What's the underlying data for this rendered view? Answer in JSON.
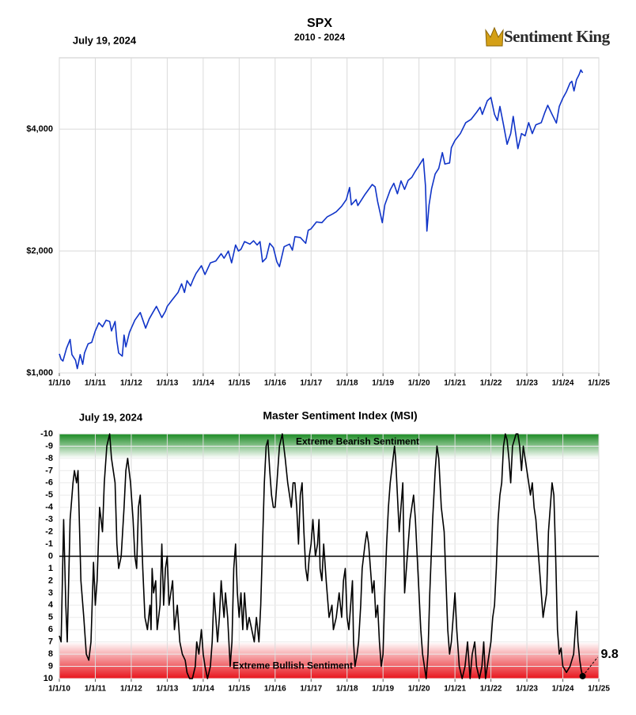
{
  "chart_data": [
    {
      "type": "line",
      "title": "SPX",
      "subtitle": "2010 - 2024",
      "date": "July 19, 2024",
      "logo": "Sentiment King",
      "log_y": true,
      "grid": true,
      "color": "#1034c8",
      "xlim": [
        2010,
        2025
      ],
      "xticks": [
        {
          "value": 2010,
          "label": "1/1/10"
        },
        {
          "value": 2011,
          "label": "1/1/11"
        },
        {
          "value": 2012,
          "label": "1/1/12"
        },
        {
          "value": 2013,
          "label": "1/1/13"
        },
        {
          "value": 2014,
          "label": "1/1/14"
        },
        {
          "value": 2015,
          "label": "1/1/15"
        },
        {
          "value": 2016,
          "label": "1/1/16"
        },
        {
          "value": 2017,
          "label": "1/1/17"
        },
        {
          "value": 2018,
          "label": "1/1/18"
        },
        {
          "value": 2019,
          "label": "1/1/19"
        },
        {
          "value": 2020,
          "label": "1/1/20"
        },
        {
          "value": 2021,
          "label": "1/1/21"
        },
        {
          "value": 2022,
          "label": "1/1/22"
        },
        {
          "value": 2023,
          "label": "1/1/23"
        },
        {
          "value": 2024,
          "label": "1/1/24"
        },
        {
          "value": 2025,
          "label": "1/1/25"
        }
      ],
      "ylim": [
        1000,
        6000
      ],
      "yticks": [
        {
          "value": 1000,
          "label": "$1,000"
        },
        {
          "value": 2000,
          "label": "$2,000"
        },
        {
          "value": 4000,
          "label": "$4,000"
        }
      ],
      "x": [
        2010.0,
        2010.05,
        2010.1,
        2010.2,
        2010.3,
        2010.35,
        2010.45,
        2010.5,
        2010.58,
        2010.65,
        2010.7,
        2010.8,
        2010.9,
        2011.0,
        2011.1,
        2011.2,
        2011.3,
        2011.4,
        2011.45,
        2011.55,
        2011.6,
        2011.65,
        2011.75,
        2011.8,
        2011.85,
        2011.95,
        2012.1,
        2012.25,
        2012.4,
        2012.5,
        2012.6,
        2012.7,
        2012.85,
        2012.95,
        2013.0,
        2013.15,
        2013.3,
        2013.4,
        2013.48,
        2013.55,
        2013.65,
        2013.72,
        2013.8,
        2013.95,
        2014.05,
        2014.2,
        2014.35,
        2014.5,
        2014.58,
        2014.7,
        2014.79,
        2014.9,
        2014.98,
        2015.05,
        2015.15,
        2015.3,
        2015.4,
        2015.5,
        2015.58,
        2015.65,
        2015.75,
        2015.85,
        2015.95,
        2016.05,
        2016.12,
        2016.25,
        2016.4,
        2016.48,
        2016.55,
        2016.7,
        2016.85,
        2016.92,
        2017.0,
        2017.15,
        2017.3,
        2017.45,
        2017.6,
        2017.7,
        2017.85,
        2017.98,
        2018.07,
        2018.12,
        2018.25,
        2018.3,
        2018.5,
        2018.7,
        2018.78,
        2018.85,
        2018.98,
        2019.05,
        2019.2,
        2019.3,
        2019.4,
        2019.5,
        2019.6,
        2019.7,
        2019.8,
        2019.9,
        2020.0,
        2020.12,
        2020.18,
        2020.22,
        2020.28,
        2020.35,
        2020.45,
        2020.55,
        2020.65,
        2020.72,
        2020.85,
        2020.9,
        2021.0,
        2021.15,
        2021.3,
        2021.45,
        2021.6,
        2021.7,
        2021.76,
        2021.9,
        2022.0,
        2022.1,
        2022.18,
        2022.25,
        2022.35,
        2022.45,
        2022.55,
        2022.62,
        2022.75,
        2022.85,
        2022.95,
        2023.05,
        2023.15,
        2023.25,
        2023.4,
        2023.5,
        2023.58,
        2023.7,
        2023.82,
        2023.9,
        2024.0,
        2024.1,
        2024.2,
        2024.25,
        2024.31,
        2024.38,
        2024.45,
        2024.5,
        2024.55
      ],
      "values": [
        1115,
        1080,
        1070,
        1150,
        1210,
        1110,
        1075,
        1025,
        1110,
        1050,
        1120,
        1180,
        1190,
        1270,
        1330,
        1300,
        1350,
        1340,
        1270,
        1340,
        1200,
        1120,
        1100,
        1240,
        1160,
        1260,
        1350,
        1410,
        1290,
        1360,
        1410,
        1460,
        1370,
        1420,
        1460,
        1520,
        1580,
        1660,
        1580,
        1690,
        1640,
        1700,
        1760,
        1840,
        1750,
        1870,
        1890,
        1970,
        1920,
        2000,
        1870,
        2070,
        2000,
        2020,
        2110,
        2080,
        2120,
        2070,
        2110,
        1880,
        1920,
        2090,
        2040,
        1880,
        1830,
        2050,
        2080,
        2010,
        2170,
        2160,
        2090,
        2250,
        2270,
        2360,
        2350,
        2430,
        2470,
        2500,
        2580,
        2680,
        2870,
        2600,
        2680,
        2590,
        2760,
        2920,
        2880,
        2650,
        2350,
        2600,
        2830,
        2940,
        2770,
        2980,
        2840,
        2990,
        3040,
        3150,
        3250,
        3380,
        2900,
        2240,
        2600,
        2850,
        3100,
        3200,
        3500,
        3280,
        3300,
        3600,
        3750,
        3900,
        4150,
        4230,
        4400,
        4530,
        4350,
        4700,
        4790,
        4350,
        4200,
        4550,
        4100,
        3670,
        3900,
        4300,
        3580,
        3900,
        3850,
        4150,
        3900,
        4100,
        4150,
        4400,
        4580,
        4350,
        4140,
        4550,
        4770,
        4950,
        5200,
        5250,
        4970,
        5300,
        5450,
        5600,
        5510
      ]
    },
    {
      "type": "line",
      "title": "Master Sentiment Index (MSI)",
      "date": "July 19, 2024",
      "grid": true,
      "zero_line": true,
      "color": "#000000",
      "label_last": true,
      "xlim": [
        2010,
        2025
      ],
      "xticks": [
        {
          "value": 2010,
          "label": "1/1/10"
        },
        {
          "value": 2011,
          "label": "1/1/11"
        },
        {
          "value": 2012,
          "label": "1/1/12"
        },
        {
          "value": 2013,
          "label": "1/1/13"
        },
        {
          "value": 2014,
          "label": "1/1/14"
        },
        {
          "value": 2015,
          "label": "1/1/15"
        },
        {
          "value": 2016,
          "label": "1/1/16"
        },
        {
          "value": 2017,
          "label": "1/1/17"
        },
        {
          "value": 2018,
          "label": "1/1/18"
        },
        {
          "value": 2019,
          "label": "1/1/19"
        },
        {
          "value": 2020,
          "label": "1/1/20"
        },
        {
          "value": 2021,
          "label": "1/1/21"
        },
        {
          "value": 2022,
          "label": "1/1/22"
        },
        {
          "value": 2023,
          "label": "1/1/23"
        },
        {
          "value": 2024,
          "label": "1/1/24"
        },
        {
          "value": 2025,
          "label": "1/1/25"
        }
      ],
      "ylim": [
        10,
        -10
      ],
      "yticks": [
        -10,
        -9,
        -8,
        -7,
        -6,
        -5,
        -4,
        -3,
        -2,
        -1,
        0,
        1,
        2,
        3,
        4,
        5,
        6,
        7,
        8,
        9,
        10
      ],
      "bands": [
        {
          "label": "Extreme Bearish Sentiment",
          "range": [
            -8,
            -10
          ],
          "color": "#1a8a22"
        },
        {
          "label": "Extreme Bullish Sentiment",
          "range": [
            7,
            10
          ],
          "color": "#e8141c"
        }
      ],
      "x": [
        2010.0,
        2010.05,
        2010.12,
        2010.18,
        2010.22,
        2010.3,
        2010.38,
        2010.42,
        2010.48,
        2010.52,
        2010.6,
        2010.68,
        2010.75,
        2010.82,
        2010.88,
        2010.95,
        2011.0,
        2011.05,
        2011.12,
        2011.2,
        2011.25,
        2011.32,
        2011.4,
        2011.45,
        2011.5,
        2011.55,
        2011.6,
        2011.65,
        2011.72,
        2011.8,
        2011.85,
        2011.9,
        2011.98,
        2012.05,
        2012.1,
        2012.15,
        2012.2,
        2012.25,
        2012.32,
        2012.38,
        2012.45,
        2012.52,
        2012.55,
        2012.58,
        2012.62,
        2012.68,
        2012.72,
        2012.8,
        2012.85,
        2012.9,
        2012.95,
        2013.0,
        2013.05,
        2013.15,
        2013.2,
        2013.28,
        2013.35,
        2013.42,
        2013.5,
        2013.55,
        2013.62,
        2013.7,
        2013.78,
        2013.82,
        2013.88,
        2013.95,
        2014.0,
        2014.05,
        2014.12,
        2014.2,
        2014.25,
        2014.3,
        2014.35,
        2014.4,
        2014.45,
        2014.5,
        2014.55,
        2014.58,
        2014.62,
        2014.68,
        2014.75,
        2014.8,
        2014.85,
        2014.9,
        2014.95,
        2015.0,
        2015.05,
        2015.1,
        2015.15,
        2015.22,
        2015.28,
        2015.35,
        2015.42,
        2015.48,
        2015.55,
        2015.6,
        2015.65,
        2015.7,
        2015.75,
        2015.8,
        2015.85,
        2015.9,
        2015.95,
        2016.0,
        2016.05,
        2016.12,
        2016.2,
        2016.28,
        2016.35,
        2016.4,
        2016.45,
        2016.5,
        2016.55,
        2016.6,
        2016.65,
        2016.7,
        2016.75,
        2016.8,
        2016.85,
        2016.9,
        2016.95,
        2017.0,
        2017.05,
        2017.12,
        2017.18,
        2017.22,
        2017.25,
        2017.3,
        2017.35,
        2017.42,
        2017.5,
        2017.58,
        2017.62,
        2017.7,
        2017.78,
        2017.85,
        2017.9,
        2017.95,
        2018.0,
        2018.05,
        2018.1,
        2018.15,
        2018.18,
        2018.22,
        2018.28,
        2018.32,
        2018.38,
        2018.42,
        2018.5,
        2018.55,
        2018.6,
        2018.65,
        2018.7,
        2018.75,
        2018.8,
        2018.85,
        2018.9,
        2018.95,
        2019.0,
        2019.05,
        2019.1,
        2019.15,
        2019.2,
        2019.28,
        2019.32,
        2019.35,
        2019.4,
        2019.45,
        2019.5,
        2019.55,
        2019.6,
        2019.65,
        2019.7,
        2019.75,
        2019.8,
        2019.85,
        2019.9,
        2019.95,
        2020.0,
        2020.05,
        2020.1,
        2020.15,
        2020.2,
        2020.25,
        2020.3,
        2020.38,
        2020.45,
        2020.5,
        2020.55,
        2020.62,
        2020.7,
        2020.75,
        2020.8,
        2020.85,
        2020.9,
        2020.95,
        2021.0,
        2021.05,
        2021.12,
        2021.2,
        2021.28,
        2021.35,
        2021.42,
        2021.48,
        2021.55,
        2021.6,
        2021.68,
        2021.75,
        2021.8,
        2021.85,
        2021.9,
        2022.0,
        2022.05,
        2022.1,
        2022.15,
        2022.2,
        2022.25,
        2022.3,
        2022.35,
        2022.4,
        2022.45,
        2022.5,
        2022.55,
        2022.6,
        2022.65,
        2022.7,
        2022.75,
        2022.8,
        2022.85,
        2022.9,
        2022.95,
        2023.05,
        2023.1,
        2023.15,
        2023.2,
        2023.25,
        2023.3,
        2023.35,
        2023.4,
        2023.45,
        2023.5,
        2023.55,
        2023.6,
        2023.65,
        2023.7,
        2023.75,
        2023.8,
        2023.85,
        2023.9,
        2023.95,
        2024.0,
        2024.1,
        2024.2,
        2024.3,
        2024.38,
        2024.42,
        2024.47,
        2024.51,
        2024.55
      ],
      "values": [
        6.5,
        7,
        -3,
        4,
        7,
        -3,
        -6,
        -7,
        -6,
        -7,
        2,
        5,
        8,
        8.5,
        7,
        0.5,
        4,
        2,
        -4,
        -2,
        -6,
        -9,
        -10,
        -8,
        -7,
        -6,
        -1,
        1,
        0,
        -4,
        -7,
        -8,
        -6,
        -3,
        0,
        1,
        -4,
        -5,
        1,
        5,
        6,
        4,
        6,
        1,
        3,
        2,
        6,
        4,
        -1,
        4,
        1,
        0,
        4,
        2,
        6,
        4,
        7,
        8,
        8.5,
        9.5,
        10,
        10,
        9,
        7,
        8,
        6,
        8,
        9,
        10,
        9,
        7,
        3,
        5,
        7,
        5,
        2,
        4,
        5,
        3,
        5,
        9,
        7,
        1,
        -1,
        3,
        5,
        3,
        6,
        3,
        6,
        5,
        6,
        7,
        5,
        7,
        4,
        -1,
        -6,
        -9,
        -9.5,
        -7,
        -5,
        -4,
        -4,
        -6,
        -9,
        -10,
        -8,
        -6,
        -5,
        -4,
        -6,
        -6,
        -4,
        -1,
        -5,
        -6,
        -2,
        1,
        2,
        0,
        -1,
        -3,
        0,
        -1,
        -3,
        1,
        2,
        -1,
        2,
        5,
        4,
        6,
        5,
        3,
        5,
        2,
        1,
        5,
        6,
        4,
        2,
        7,
        9,
        8,
        7,
        4,
        1,
        -1,
        -2,
        -1,
        1,
        3,
        2,
        5,
        4,
        7,
        9,
        8,
        3,
        -1,
        -4,
        -6,
        -8,
        -9,
        -8,
        -5,
        -2,
        -4,
        -6,
        3,
        1,
        -1,
        -3,
        -4,
        -5,
        -3,
        0,
        3,
        6,
        8,
        9,
        10,
        8,
        3,
        -3,
        -7,
        -9,
        -8,
        -4,
        -2,
        2,
        6,
        8,
        7,
        5,
        3,
        6,
        9,
        10,
        9,
        7,
        10,
        8,
        7,
        9,
        10,
        9,
        7,
        10,
        9,
        7,
        5,
        4,
        1,
        -3,
        -5,
        -6,
        -9,
        -10,
        -9.5,
        -8,
        -6,
        -9,
        -9.5,
        -10,
        -10,
        -9,
        -7,
        -9,
        -8,
        -6,
        -5,
        -6,
        -4,
        -3,
        -1,
        1,
        3,
        5,
        4,
        3,
        -2,
        -4,
        -6,
        -5,
        0,
        6,
        8,
        7.5,
        9,
        9.5,
        9,
        8,
        4.5,
        7,
        8.5,
        9.3,
        9.8
      ]
    }
  ]
}
